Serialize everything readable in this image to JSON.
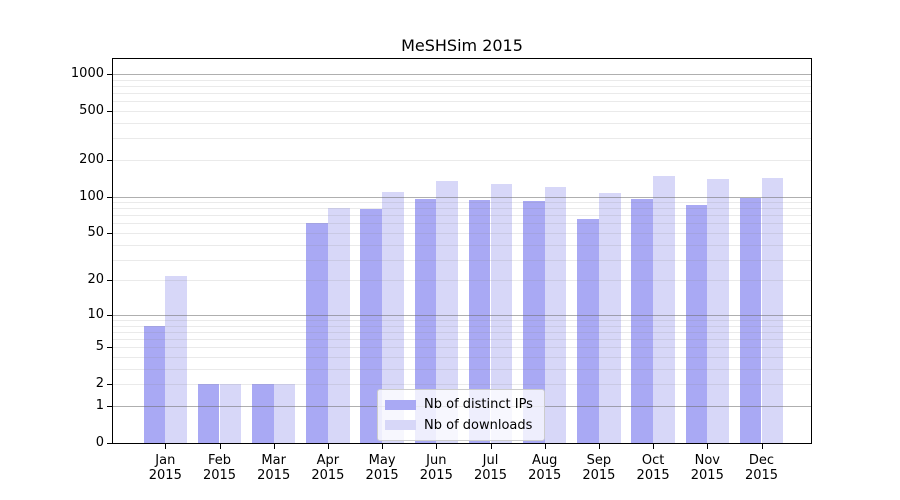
{
  "chart_data": {
    "type": "bar",
    "title": "MeSHSim 2015",
    "categories": [
      "Jan",
      "Feb",
      "Mar",
      "Apr",
      "May",
      "Jun",
      "Jul",
      "Aug",
      "Sep",
      "Oct",
      "Nov",
      "Dec"
    ],
    "category_year": "2015",
    "series": [
      {
        "name": "Nb of distinct IPs",
        "color": "#a9a9f4",
        "values": [
          8,
          2,
          2,
          60,
          79,
          96,
          93,
          91,
          65,
          95,
          85,
          98
        ]
      },
      {
        "name": "Nb of downloads",
        "color": "#d7d7f8",
        "values": [
          22,
          2,
          2,
          80,
          109,
          135,
          127,
          120,
          107,
          148,
          140,
          142
        ]
      }
    ],
    "y_scale": "symlog",
    "ylim": [
      0,
      1330
    ],
    "y_ticks": [
      0,
      1,
      2,
      5,
      10,
      20,
      50,
      100,
      200,
      500,
      1000
    ],
    "grid": {
      "major_values": [
        1,
        10,
        100,
        1000
      ],
      "minor_values": [
        2,
        3,
        4,
        5,
        6,
        7,
        8,
        9,
        20,
        30,
        40,
        50,
        60,
        70,
        80,
        90,
        200,
        300,
        400,
        500,
        600,
        700,
        800,
        900
      ],
      "major_color": "#b0b0b0",
      "minor_color": "#ebebeb"
    },
    "legend_position": "lower-center",
    "grid_on_top_of_bars": true
  }
}
